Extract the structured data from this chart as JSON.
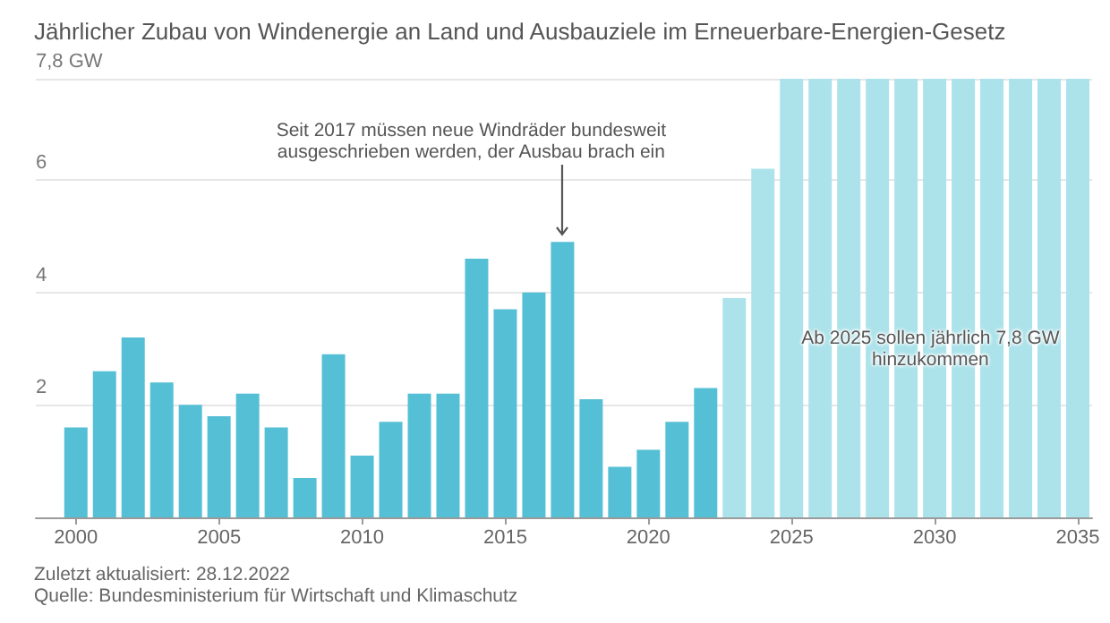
{
  "chart_data": {
    "type": "bar",
    "title": "Jährlicher Zubau von Windenergie an Land und Ausbauziele im Erneuerbare-Energien-Gesetz",
    "x": [
      2000,
      2001,
      2002,
      2003,
      2004,
      2005,
      2006,
      2007,
      2008,
      2009,
      2010,
      2011,
      2012,
      2013,
      2014,
      2015,
      2016,
      2017,
      2018,
      2019,
      2020,
      2021,
      2022,
      2023,
      2024,
      2025,
      2026,
      2027,
      2028,
      2029,
      2030,
      2031,
      2032,
      2033,
      2034,
      2035
    ],
    "values": [
      1.6,
      2.6,
      3.2,
      2.4,
      2.0,
      1.8,
      2.2,
      1.6,
      0.7,
      2.9,
      1.1,
      1.7,
      2.2,
      2.2,
      4.6,
      3.7,
      4.0,
      4.9,
      2.1,
      0.9,
      1.2,
      1.7,
      2.3,
      3.9,
      6.2,
      7.8,
      7.8,
      7.8,
      7.8,
      7.8,
      7.8,
      7.8,
      7.8,
      7.8,
      7.8,
      7.8
    ],
    "colors": [
      "#55c0d5",
      "#55c0d5",
      "#55c0d5",
      "#55c0d5",
      "#55c0d5",
      "#55c0d5",
      "#55c0d5",
      "#55c0d5",
      "#55c0d5",
      "#55c0d5",
      "#55c0d5",
      "#55c0d5",
      "#55c0d5",
      "#55c0d5",
      "#55c0d5",
      "#55c0d5",
      "#55c0d5",
      "#55c0d5",
      "#55c0d5",
      "#55c0d5",
      "#55c0d5",
      "#55c0d5",
      "#55c0d5",
      "#ace3eb",
      "#ace3eb",
      "#ace3eb",
      "#ace3eb",
      "#ace3eb",
      "#ace3eb",
      "#ace3eb",
      "#ace3eb",
      "#ace3eb",
      "#ace3eb",
      "#ace3eb",
      "#ace3eb",
      "#ace3eb"
    ],
    "xlim": [
      1998.6,
      2035.5
    ],
    "xticks": [
      2000,
      2005,
      2010,
      2015,
      2020,
      2025,
      2030,
      2035
    ],
    "ylim": [
      0,
      7.8
    ],
    "yticks": [
      2,
      4,
      6,
      {
        "value": 7.8,
        "label": "7,8 GW"
      }
    ],
    "grid": "y",
    "annotations": [
      {
        "text": "Seit 2017 müssen neue Windräder bundesweit ausgeschrieben werden, der Ausbau brach ein",
        "x": 2017,
        "y": 4.9
      },
      "Ab 2025 sollen jährlich 7,8 GW hinzukommen",
      "Zuletzt aktualisiert: 28.12.2022",
      "Quelle: Bundesministerium für Wirtschaft und Klimaschutz"
    ]
  }
}
